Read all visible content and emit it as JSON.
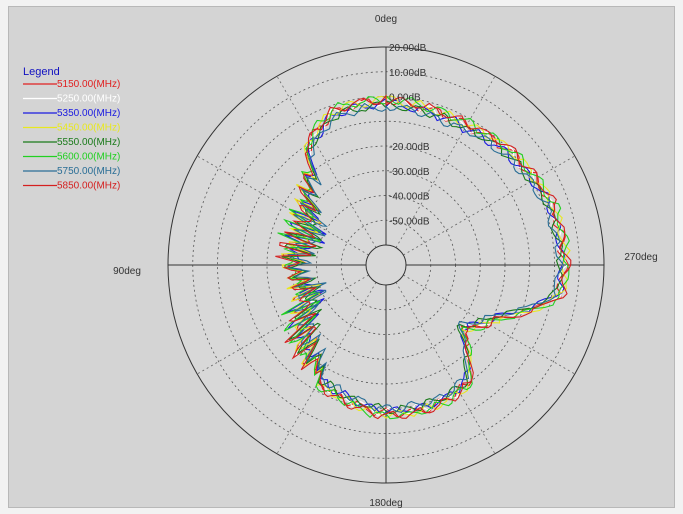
{
  "chart_data": {
    "type": "polar-line",
    "title": "",
    "angle_labels": [
      {
        "text": "0deg",
        "angle": 0
      },
      {
        "text": "90deg",
        "angle": 90
      },
      {
        "text": "180deg",
        "angle": 180
      },
      {
        "text": "270deg",
        "angle": 270
      }
    ],
    "angle_direction": "counter-clockwise, 0deg at top, 90deg at left",
    "radial_range_db": [
      -60,
      20
    ],
    "radial_ticks": [
      {
        "value": 20,
        "label": "20.00dB"
      },
      {
        "value": 10,
        "label": "10.00dB"
      },
      {
        "value": 0,
        "label": "0.00dB"
      },
      {
        "value": -10,
        "label": ""
      },
      {
        "value": -20,
        "label": "-20.00dB"
      },
      {
        "value": -30,
        "label": "-30.00dB"
      },
      {
        "value": -40,
        "label": "-40.00dB"
      },
      {
        "value": -50,
        "label": "-50.00dB"
      }
    ],
    "legend": {
      "title": "Legend",
      "position": "top-left"
    },
    "series": [
      {
        "name": "5150.00(MHz)",
        "color": "#e02020",
        "offset": 0.0,
        "seed": 1
      },
      {
        "name": "5250.00(MHz)",
        "color": "#ffffff",
        "offset": -0.5,
        "seed": 2
      },
      {
        "name": "5350.00(MHz)",
        "color": "#1a1ae0",
        "offset": -1.0,
        "seed": 3
      },
      {
        "name": "5450.00(MHz)",
        "color": "#e8e820",
        "offset": 0.5,
        "seed": 4
      },
      {
        "name": "5550.00(MHz)",
        "color": "#1a7a1a",
        "offset": -1.5,
        "seed": 5
      },
      {
        "name": "5600.00(MHz)",
        "color": "#22d022",
        "offset": 1.0,
        "seed": 6
      },
      {
        "name": "5750.00(MHz)",
        "color": "#2a6e96",
        "offset": -2.0,
        "seed": 7
      },
      {
        "name": "5850.00(MHz)",
        "color": "#d42020",
        "offset": 0.8,
        "seed": 8
      }
    ],
    "base_pattern_db": [
      {
        "angle": 0,
        "db": -2
      },
      {
        "angle": 20,
        "db": -3
      },
      {
        "angle": 40,
        "db": -15
      },
      {
        "angle": 55,
        "db": -25
      },
      {
        "angle": 70,
        "db": -28
      },
      {
        "angle": 90,
        "db": -25
      },
      {
        "angle": 110,
        "db": -30
      },
      {
        "angle": 125,
        "db": -22
      },
      {
        "angle": 140,
        "db": -15
      },
      {
        "angle": 160,
        "db": -12
      },
      {
        "angle": 180,
        "db": -8
      },
      {
        "angle": 200,
        "db": -8
      },
      {
        "angle": 215,
        "db": -10
      },
      {
        "angle": 230,
        "db": -28
      },
      {
        "angle": 245,
        "db": -18
      },
      {
        "angle": 260,
        "db": 3
      },
      {
        "angle": 270,
        "db": 4
      },
      {
        "angle": 290,
        "db": 3
      },
      {
        "angle": 310,
        "db": 0
      },
      {
        "angle": 330,
        "db": -3
      },
      {
        "angle": 345,
        "db": -3
      },
      {
        "angle": 360,
        "db": -2
      }
    ]
  }
}
